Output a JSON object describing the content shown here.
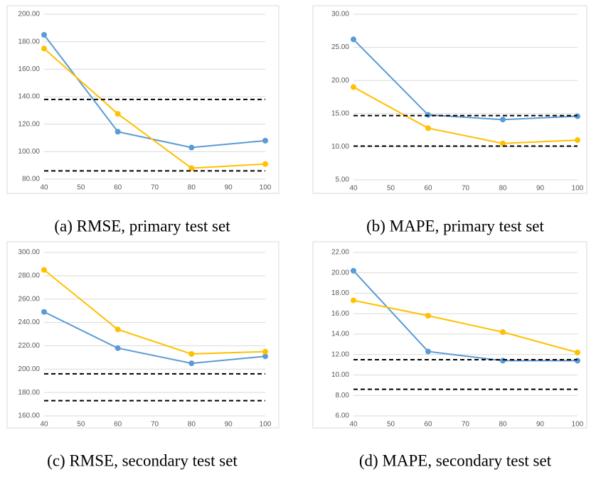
{
  "chart_data": [
    {
      "type": "line",
      "title": "(a) RMSE, primary test set",
      "x": [
        40,
        60,
        80,
        100
      ],
      "xlim": [
        40,
        100
      ],
      "xticks": [
        40,
        50,
        60,
        70,
        80,
        90,
        100
      ],
      "ylim": [
        80,
        200
      ],
      "yticks": [
        {
          "value": 80,
          "label": "80.00"
        },
        {
          "value": 100,
          "label": "100.00"
        },
        {
          "value": 120,
          "label": "120.00"
        },
        {
          "value": 140,
          "label": "140.00"
        },
        {
          "value": 160,
          "label": "160.00"
        },
        {
          "value": 180,
          "label": "180.00"
        },
        {
          "value": 200,
          "label": "200.00"
        }
      ],
      "grid": true,
      "series": [
        {
          "color": "#5b9bd5",
          "marker": "circle",
          "values": [
            185,
            114.5,
            103,
            108
          ]
        },
        {
          "color": "#ffc000",
          "marker": "circle",
          "values": [
            175,
            127.5,
            88,
            91
          ]
        },
        {
          "color": "#000000",
          "linestyle": "dashed",
          "values": [
            138,
            138,
            138,
            138
          ]
        },
        {
          "color": "#000000",
          "linestyle": "dashed",
          "values": [
            86,
            86,
            86,
            86
          ]
        }
      ]
    },
    {
      "type": "line",
      "title": "(b) MAPE, primary test set",
      "x": [
        40,
        60,
        80,
        100
      ],
      "xlim": [
        40,
        100
      ],
      "xticks": [
        40,
        50,
        60,
        70,
        80,
        90,
        100
      ],
      "ylim": [
        5,
        30
      ],
      "yticks": [
        {
          "value": 5,
          "label": "5.00"
        },
        {
          "value": 10,
          "label": "10.00"
        },
        {
          "value": 15,
          "label": "15.00"
        },
        {
          "value": 20,
          "label": "20.00"
        },
        {
          "value": 25,
          "label": "25.00"
        },
        {
          "value": 30,
          "label": "30.00"
        }
      ],
      "grid": true,
      "series": [
        {
          "color": "#5b9bd5",
          "marker": "circle",
          "values": [
            26.2,
            14.8,
            14.1,
            14.6
          ]
        },
        {
          "color": "#ffc000",
          "marker": "circle",
          "values": [
            19.0,
            12.8,
            10.5,
            11.0
          ]
        },
        {
          "color": "#000000",
          "linestyle": "dashed",
          "values": [
            14.7,
            14.7,
            14.7,
            14.7
          ]
        },
        {
          "color": "#000000",
          "linestyle": "dashed",
          "values": [
            10.1,
            10.1,
            10.1,
            10.1
          ]
        }
      ]
    },
    {
      "type": "line",
      "title": "(c) RMSE, secondary test set",
      "x": [
        40,
        60,
        80,
        100
      ],
      "xlim": [
        40,
        100
      ],
      "xticks": [
        40,
        50,
        60,
        70,
        80,
        90,
        100
      ],
      "ylim": [
        160,
        300
      ],
      "yticks": [
        {
          "value": 160,
          "label": "160.00"
        },
        {
          "value": 180,
          "label": "180.00"
        },
        {
          "value": 200,
          "label": "200.00"
        },
        {
          "value": 220,
          "label": "220.00"
        },
        {
          "value": 240,
          "label": "240.00"
        },
        {
          "value": 260,
          "label": "260.00"
        },
        {
          "value": 280,
          "label": "280.00"
        },
        {
          "value": 300,
          "label": "300.00"
        }
      ],
      "grid": true,
      "series": [
        {
          "color": "#5b9bd5",
          "marker": "circle",
          "values": [
            249,
            218,
            205,
            211
          ]
        },
        {
          "color": "#ffc000",
          "marker": "circle",
          "values": [
            285,
            234,
            213,
            215
          ]
        },
        {
          "color": "#000000",
          "linestyle": "dashed",
          "values": [
            196,
            196,
            196,
            196
          ]
        },
        {
          "color": "#000000",
          "linestyle": "dashed",
          "values": [
            173,
            173,
            173,
            173
          ]
        }
      ]
    },
    {
      "type": "line",
      "title": "(d) MAPE, secondary test set",
      "x": [
        40,
        60,
        80,
        100
      ],
      "xlim": [
        40,
        100
      ],
      "xticks": [
        40,
        50,
        60,
        70,
        80,
        90,
        100
      ],
      "ylim": [
        6,
        22
      ],
      "yticks": [
        {
          "value": 6,
          "label": "6.00"
        },
        {
          "value": 8,
          "label": "8.00"
        },
        {
          "value": 10,
          "label": "10.00"
        },
        {
          "value": 12,
          "label": "12.00"
        },
        {
          "value": 14,
          "label": "14.00"
        },
        {
          "value": 16,
          "label": "16.00"
        },
        {
          "value": 18,
          "label": "18.00"
        },
        {
          "value": 20,
          "label": "20.00"
        },
        {
          "value": 22,
          "label": "22.00"
        }
      ],
      "grid": true,
      "series": [
        {
          "color": "#5b9bd5",
          "marker": "circle",
          "values": [
            20.2,
            12.3,
            11.4,
            11.4
          ]
        },
        {
          "color": "#ffc000",
          "marker": "circle",
          "values": [
            17.3,
            15.8,
            14.2,
            12.2
          ]
        },
        {
          "color": "#000000",
          "linestyle": "dashed",
          "values": [
            11.5,
            11.5,
            11.5,
            11.5
          ]
        },
        {
          "color": "#000000",
          "linestyle": "dashed",
          "values": [
            8.6,
            8.6,
            8.6,
            8.6
          ]
        }
      ]
    }
  ]
}
